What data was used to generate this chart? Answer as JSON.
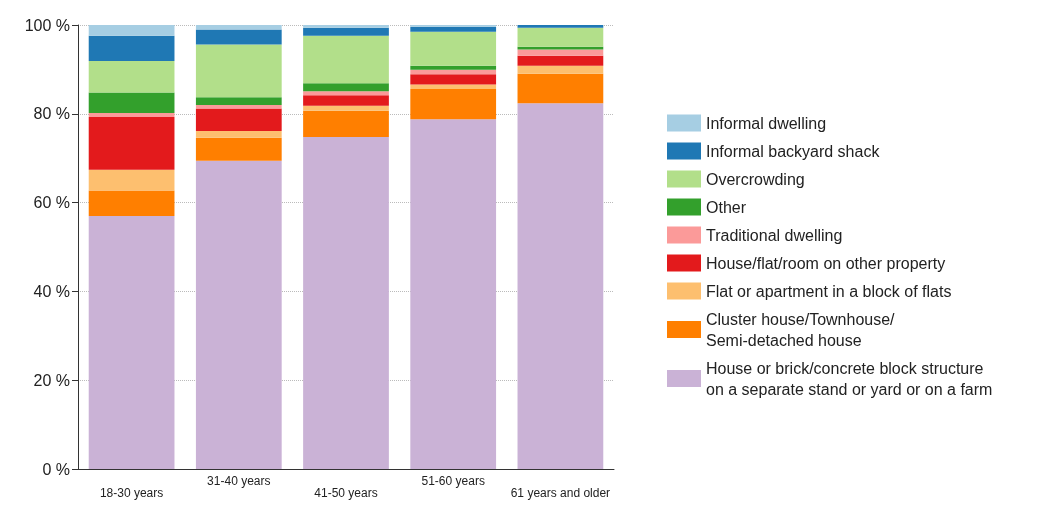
{
  "chart_data": {
    "type": "bar",
    "stacked": true,
    "categories": [
      "18-30 years",
      "31-40 years",
      "41-50 years",
      "51-60 years",
      "61 years and older"
    ],
    "series": [
      {
        "name": "House or brick/concrete block structure on a separate stand or yard or on a farm",
        "color": "#cab2d6",
        "values": [
          57.0,
          69.4,
          74.8,
          78.8,
          82.4
        ]
      },
      {
        "name": "Cluster house/Townhouse/Semi-detached house",
        "color": "#ff7f00",
        "values": [
          5.7,
          5.2,
          5.9,
          6.8,
          6.6
        ]
      },
      {
        "name": "Flat or apartment in a block of flats",
        "color": "#fdbf6f",
        "values": [
          4.7,
          1.5,
          1.1,
          1.0,
          1.8
        ]
      },
      {
        "name": "House/flat/room on other property",
        "color": "#e31a1c",
        "values": [
          11.9,
          5.1,
          2.4,
          2.3,
          2.3
        ]
      },
      {
        "name": "Traditional dwelling",
        "color": "#fb9a99",
        "values": [
          0.9,
          0.8,
          0.9,
          1.0,
          1.4
        ]
      },
      {
        "name": "Other",
        "color": "#33a02c",
        "values": [
          4.6,
          1.7,
          1.8,
          0.9,
          0.6
        ]
      },
      {
        "name": "Overcrowding",
        "color": "#b2df8a",
        "values": [
          7.1,
          11.9,
          10.7,
          7.7,
          4.3
        ]
      },
      {
        "name": "Informal backyard shack",
        "color": "#1f78b4",
        "values": [
          5.7,
          3.4,
          1.8,
          1.1,
          0.6
        ]
      },
      {
        "name": "Informal dwelling",
        "color": "#a6cee3",
        "values": [
          2.4,
          1.0,
          0.6,
          0.4,
          0
        ]
      }
    ],
    "ylim": [
      0,
      100
    ],
    "yticks": [
      {
        "value": 0,
        "label": "0 %"
      },
      {
        "value": 20,
        "label": "20 %"
      },
      {
        "value": 40,
        "label": "40 %"
      },
      {
        "value": 60,
        "label": "60 %"
      },
      {
        "value": 80,
        "label": "80 %"
      },
      {
        "value": 100,
        "label": "100 %"
      }
    ],
    "grid": "y",
    "legend": "right"
  }
}
